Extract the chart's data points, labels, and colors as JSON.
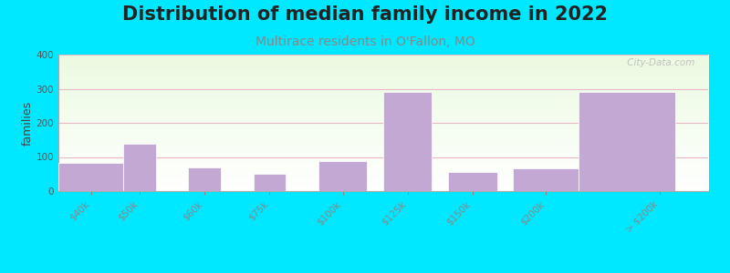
{
  "title": "Distribution of median family income in 2022",
  "subtitle": "Multirace residents in O'Fallon, MO",
  "ylabel": "families",
  "background_outer": "#00e8ff",
  "bar_color": "#c4a8d4",
  "categories": [
    "$40k",
    "$50k",
    "$60k",
    "$75k",
    "$100k",
    "$125k",
    "$150k",
    "$200k",
    "> $200k"
  ],
  "values": [
    82,
    138,
    70,
    50,
    87,
    290,
    55,
    67,
    290
  ],
  "bar_lefts": [
    0,
    1,
    2,
    3,
    4,
    5,
    6,
    7,
    8
  ],
  "bar_widths": [
    1,
    0.5,
    0.5,
    0.5,
    0.75,
    0.75,
    0.75,
    1,
    1.5
  ],
  "tick_positions": [
    0.5,
    1.25,
    2.25,
    3.25,
    4.375,
    5.375,
    6.375,
    7.5,
    9.25
  ],
  "xlim": [
    0,
    10
  ],
  "ylim": [
    0,
    400
  ],
  "yticks": [
    0,
    100,
    200,
    300,
    400
  ],
  "grid_color": "#e8b8c8",
  "title_fontsize": 15,
  "subtitle_fontsize": 10,
  "subtitle_color": "#888888",
  "ylabel_fontsize": 9,
  "tick_fontsize": 7.5,
  "watermark": " City-Data.com"
}
